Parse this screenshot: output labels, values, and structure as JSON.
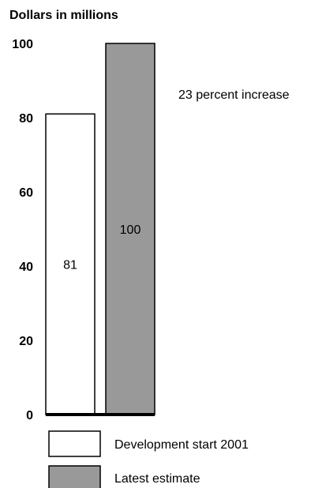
{
  "chart_data": {
    "type": "bar",
    "ylabel": "Dollars in millions",
    "ylim": [
      0,
      100
    ],
    "yticks": [
      "0",
      "20",
      "40",
      "60",
      "80",
      "100"
    ],
    "categories": [
      "Development start 2001",
      "Latest estimate"
    ],
    "values": [
      81,
      100
    ],
    "data_labels": [
      "81",
      "100"
    ],
    "annotation": "23 percent increase",
    "legend": [
      "Development start 2001",
      "Latest estimate"
    ],
    "legend_position": "bottom",
    "grid": false,
    "colors": [
      "#ffffff",
      "#999999"
    ]
  }
}
